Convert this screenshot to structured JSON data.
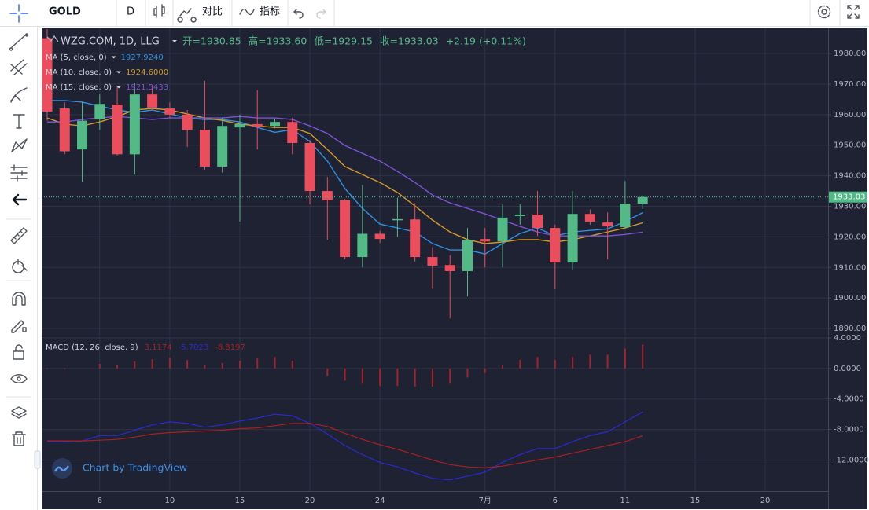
{
  "toolbar": {
    "symbol": "GOLD",
    "interval": "D",
    "compare": "对比",
    "indicators": "指标"
  },
  "watermark": "Chart by TradingView",
  "chart_data": [
    {
      "type": "candlestick",
      "title": "WZG.COM, 1D, LLG",
      "header": [
        "开=1930.85",
        "高=1933.60",
        "低=1929.15",
        "收=1933.03",
        "+2.19 (+0.11%)"
      ],
      "categories": [
        null,
        null,
        null,
        "6",
        null,
        null,
        null,
        "10",
        null,
        null,
        null,
        "15",
        null,
        null,
        null,
        "20",
        null,
        null,
        null,
        "24",
        null,
        null,
        null,
        null,
        null,
        "7月",
        null,
        null,
        null,
        "6",
        null,
        null,
        null,
        "11",
        null,
        null,
        null,
        "15",
        null,
        null,
        null,
        "20",
        null,
        null,
        null
      ],
      "open": [
        1985,
        1962,
        1948.6,
        1958.4,
        1963.3,
        1947,
        1966.6,
        1962,
        1960,
        1955,
        1943,
        1955.8,
        1956.9,
        1956.3,
        1957.6,
        1950.7,
        1935,
        1932,
        1913.4,
        1921,
        1925.5,
        1925.7,
        1913.4,
        1910.8,
        1908.8,
        1919.3,
        1918.5,
        1926.8,
        1927.3,
        1922.9,
        1911.6,
        1927.5,
        1924.7,
        1923.2,
        1930.85,
        null,
        null,
        null,
        null,
        null,
        null,
        null,
        null,
        null,
        null
      ],
      "high": [
        1988,
        1964,
        1964,
        1966.6,
        1969,
        1970.5,
        1969.7,
        1964,
        1961.5,
        1971,
        1959,
        1960,
        1968,
        1958.5,
        1959,
        1951.7,
        1939.6,
        1932.4,
        1937,
        1922,
        1932.8,
        1931,
        1916.6,
        1914,
        1922.9,
        1922.9,
        1930.6,
        1930.6,
        1935,
        1924,
        1935,
        1929,
        1928,
        1938.3,
        1933.6,
        null,
        null,
        null,
        null,
        null,
        null,
        null,
        null,
        null,
        null
      ],
      "low": [
        1958,
        1947,
        1938,
        1955,
        1946.6,
        1940.4,
        1961.5,
        1959,
        1949.4,
        1942,
        1941,
        1925,
        1948.6,
        1955.5,
        1947,
        1930.6,
        1919,
        1912.7,
        1910,
        1918,
        1920,
        1911.9,
        1903,
        1893.3,
        1900.5,
        1910,
        1910,
        1924,
        1920.3,
        1902.9,
        1909,
        1924,
        1912.6,
        1922.6,
        1929.15,
        null,
        null,
        null,
        null,
        null,
        null,
        null,
        null,
        null,
        null
      ],
      "close": [
        1961,
        1948,
        1958,
        1963.5,
        1947,
        1966.6,
        1962.3,
        1960,
        1955,
        1943,
        1956.3,
        1956.9,
        1956,
        1957.6,
        1950.7,
        1935,
        1932,
        1913.4,
        1921,
        1919.3,
        1925.8,
        1913.4,
        1910.6,
        1908.8,
        1919,
        1918.5,
        1926.3,
        1927.3,
        1922.9,
        1911.6,
        1927.5,
        1925,
        1923.4,
        1930.9,
        1933.03,
        null,
        null,
        null,
        null,
        null,
        null,
        null,
        null,
        null,
        null
      ],
      "up_color": "#53b987",
      "down_color": "#eb4d5c",
      "series": [
        {
          "name": "MA (5, close, 0)",
          "color": "#2f8fe0",
          "legend_value": "1927.9240",
          "values": [
            1964.6,
            1964.6,
            1964.1,
            1962.8,
            1961.5,
            1960.7,
            1961.5,
            1960.2,
            1958.9,
            1958.4,
            1958.4,
            1957.6,
            1955.8,
            1954.2,
            1955.1,
            1951.2,
            1944.8,
            1935.8,
            1929.3,
            1924.2,
            1922.9,
            1921.6,
            1917.8,
            1915.7,
            1915.7,
            1914.4,
            1917.8,
            1921.1,
            1922.9,
            1920.3,
            1921.6,
            1922.1,
            1922.6,
            1925.0,
            1927.924,
            null,
            null,
            null,
            null,
            null,
            null,
            null,
            null,
            null,
            null
          ]
        },
        {
          "name": "MA (10, close, 0)",
          "color": "#d4982a",
          "legend_value": "1924.6000",
          "values": [
            1958.9,
            1956.9,
            1956.3,
            1957.6,
            1959.4,
            1961.5,
            1962.0,
            1961.5,
            1960.2,
            1958.9,
            1958.1,
            1956.9,
            1956.3,
            1955.8,
            1955.8,
            1953.8,
            1948.6,
            1943.0,
            1940.4,
            1937.8,
            1934.5,
            1930.1,
            1925.5,
            1921.6,
            1919.1,
            1917.8,
            1918.3,
            1919.1,
            1919.1,
            1918.3,
            1919.1,
            1920.3,
            1921.6,
            1922.9,
            1924.6,
            null,
            null,
            null,
            null,
            null,
            null,
            null,
            null,
            null,
            null
          ]
        },
        {
          "name": "MA (15, close, 0)",
          "color": "#7b52d6",
          "legend_value": "1921.5433",
          "values": [
            1957.6,
            1957.6,
            1958.4,
            1958.9,
            1959.4,
            1958.9,
            1958.4,
            1958.9,
            1958.9,
            1958.9,
            1958.9,
            1959.4,
            1958.9,
            1958.9,
            1958.4,
            1956.3,
            1953.8,
            1949.9,
            1947.3,
            1944.8,
            1941.4,
            1937.8,
            1933.7,
            1931.1,
            1929.3,
            1927.5,
            1925.5,
            1923.4,
            1921.6,
            1920.3,
            1920.3,
            1920.3,
            1920.3,
            1920.8,
            1921.5433,
            null,
            null,
            null,
            null,
            null,
            null,
            null,
            null,
            null,
            null
          ]
        }
      ],
      "ylim": [
        1887.7,
        1988.5
      ],
      "yticks": [
        {
          "value": 1980,
          "label": "1980.00"
        },
        {
          "value": 1970,
          "label": "1970.00"
        },
        {
          "value": 1960,
          "label": "1960.00"
        },
        {
          "value": 1950,
          "label": "1950.00"
        },
        {
          "value": 1940,
          "label": "1940.00"
        },
        {
          "value": 1930,
          "label": "1930.00"
        },
        {
          "value": 1920,
          "label": "1920.00"
        },
        {
          "value": 1910,
          "label": "1910.00"
        },
        {
          "value": 1900,
          "label": "1900.00"
        },
        {
          "value": 1890,
          "label": "1890.00"
        }
      ],
      "last_price": {
        "value": 1933.03,
        "label": "1933.03"
      },
      "grid": true
    },
    {
      "type": "macd",
      "title": "MACD (12, 26, close, 9)",
      "series": [
        {
          "kind": "bar",
          "color": "#a3222a",
          "legend_value": "3.1174",
          "values": [
            -0.1,
            -0.1,
            0,
            0.6,
            0.5,
            0.9,
            1.2,
            1.4,
            1.1,
            0.5,
            0.7,
            1.0,
            1.3,
            1.5,
            1.0,
            0,
            -1.0,
            -1.6,
            -2.0,
            -2.3,
            -2.3,
            -2.4,
            -2.4,
            -2.0,
            -1.2,
            -0.6,
            0.5,
            1.1,
            1.5,
            1.1,
            1.5,
            1.8,
            1.8,
            2.6,
            3.1174,
            null,
            null,
            null,
            null,
            null,
            null,
            null,
            null,
            null,
            null
          ]
        },
        {
          "kind": "line",
          "color": "#2a2ad0",
          "legend_value": "-5.7023",
          "values": [
            -9.6,
            -9.6,
            -9.5,
            -8.8,
            -8.8,
            -8.1,
            -7.4,
            -7.0,
            -7.2,
            -7.7,
            -7.4,
            -6.9,
            -6.5,
            -6.0,
            -6.2,
            -7.2,
            -8.6,
            -10.1,
            -11.3,
            -12.3,
            -12.9,
            -13.7,
            -14.4,
            -14.6,
            -14.1,
            -13.6,
            -12.3,
            -11.3,
            -10.5,
            -10.5,
            -9.6,
            -8.8,
            -8.3,
            -7.0,
            -5.7023,
            null,
            null,
            null,
            null,
            null,
            null,
            null,
            null,
            null,
            null
          ]
        },
        {
          "kind": "line",
          "color": "#a8201e",
          "legend_value": "-8.8197",
          "values": [
            -9.5,
            -9.5,
            -9.5,
            -9.4,
            -9.3,
            -9.0,
            -8.6,
            -8.4,
            -8.3,
            -8.2,
            -8.1,
            -7.9,
            -7.8,
            -7.5,
            -7.2,
            -7.2,
            -7.6,
            -8.5,
            -9.3,
            -10.0,
            -10.6,
            -11.3,
            -12.0,
            -12.6,
            -12.9,
            -13.0,
            -12.8,
            -12.4,
            -12.0,
            -11.6,
            -11.1,
            -10.6,
            -10.1,
            -9.6,
            -8.8197,
            null,
            null,
            null,
            null,
            null,
            null,
            null,
            null,
            null,
            null
          ]
        }
      ],
      "ylim": [
        -16.07,
        4.2
      ],
      "yticks": [
        {
          "value": 4,
          "label": "4.0000"
        },
        {
          "value": 0,
          "label": "0.0000"
        },
        {
          "value": -4,
          "label": "-4.0000"
        },
        {
          "value": -8,
          "label": "-8.0000"
        },
        {
          "value": -12,
          "label": "-12.0000"
        }
      ],
      "grid": true
    }
  ]
}
